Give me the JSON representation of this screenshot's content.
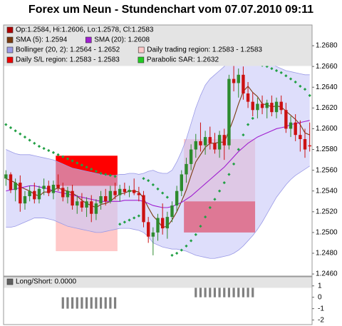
{
  "chart_data": [
    {
      "type": "candlestick",
      "title": "Forex um Neun - Stundenchart vom 07.07.2010 09:11",
      "open": [
        1.2552,
        1.2556,
        1.2541,
        1.2548,
        1.2528,
        1.2535,
        1.254,
        1.2532,
        1.2542,
        1.2545,
        1.2538,
        1.2546,
        1.2543,
        1.2534,
        1.254,
        1.2526,
        1.253,
        1.2524,
        1.253,
        1.2518,
        1.2528,
        1.2535,
        1.253,
        1.254,
        1.2536,
        1.2542,
        1.2539,
        1.2541,
        1.2538,
        1.2536,
        1.251,
        1.2496,
        1.25,
        1.2514,
        1.2504,
        1.2515,
        1.2526,
        1.254,
        1.2556,
        1.2566,
        1.258,
        1.2588,
        1.2584,
        1.2592,
        1.2586,
        1.258,
        1.2594,
        1.2584,
        1.2648,
        1.2644,
        1.2652,
        1.2634,
        1.2626,
        1.2618,
        1.2624,
        1.262,
        1.2625,
        1.2616,
        1.2626,
        1.2618,
        1.26,
        1.2606,
        1.2594,
        1.259,
        1.2584
      ],
      "high": [
        1.256,
        1.2558,
        1.2552,
        1.2555,
        1.254,
        1.2545,
        1.2548,
        1.2545,
        1.2552,
        1.255,
        1.255,
        1.2556,
        1.2548,
        1.2544,
        1.2546,
        1.2536,
        1.2538,
        1.2534,
        1.2536,
        1.2532,
        1.254,
        1.2542,
        1.2545,
        1.2548,
        1.2546,
        1.2548,
        1.2545,
        1.2552,
        1.2544,
        1.254,
        1.2515,
        1.2505,
        1.2518,
        1.2528,
        1.252,
        1.253,
        1.2545,
        1.256,
        1.2572,
        1.2585,
        1.2595,
        1.2606,
        1.2598,
        1.2602,
        1.2596,
        1.2598,
        1.26,
        1.2652,
        1.2662,
        1.2658,
        1.266,
        1.2645,
        1.2635,
        1.263,
        1.2632,
        1.2628,
        1.2632,
        1.263,
        1.2632,
        1.2625,
        1.2612,
        1.2614,
        1.2608,
        1.26,
        1.2606
      ],
      "low": [
        1.2545,
        1.2538,
        1.253,
        1.252,
        1.2522,
        1.253,
        1.2528,
        1.2528,
        1.2536,
        1.2535,
        1.2532,
        1.254,
        1.253,
        1.2528,
        1.2522,
        1.2518,
        1.252,
        1.2515,
        1.251,
        1.2512,
        1.2522,
        1.2526,
        1.2528,
        1.2532,
        1.253,
        1.2536,
        1.2534,
        1.2536,
        1.253,
        1.2505,
        1.249,
        1.2478,
        1.2492,
        1.2498,
        1.2494,
        1.251,
        1.252,
        1.2535,
        1.2548,
        1.256,
        1.2572,
        1.2578,
        1.2575,
        1.258,
        1.2576,
        1.2572,
        1.257,
        1.258,
        1.2636,
        1.263,
        1.2628,
        1.262,
        1.2612,
        1.261,
        1.2614,
        1.261,
        1.2612,
        1.261,
        1.2614,
        1.2596,
        1.2592,
        1.2588,
        1.2578,
        1.2572,
        1.2578
      ],
      "close": [
        1.2556,
        1.2541,
        1.2548,
        1.2528,
        1.2535,
        1.254,
        1.2532,
        1.2542,
        1.2545,
        1.2538,
        1.2546,
        1.2543,
        1.2534,
        1.254,
        1.2526,
        1.253,
        1.2524,
        1.253,
        1.2518,
        1.2528,
        1.2535,
        1.253,
        1.254,
        1.2536,
        1.2542,
        1.2539,
        1.2541,
        1.2538,
        1.2536,
        1.251,
        1.2496,
        1.25,
        1.2514,
        1.2504,
        1.2515,
        1.2526,
        1.254,
        1.2556,
        1.2566,
        1.258,
        1.2588,
        1.2584,
        1.2592,
        1.2586,
        1.258,
        1.2594,
        1.2584,
        1.2648,
        1.2644,
        1.2652,
        1.2634,
        1.2626,
        1.2618,
        1.2624,
        1.262,
        1.2625,
        1.2616,
        1.2626,
        1.2618,
        1.26,
        1.2606,
        1.2594,
        1.259,
        1.258,
        1.2583
      ],
      "up_color": "#2e8b2e",
      "down_color": "#cc1111",
      "bollinger": {
        "fill": "#c8c8f8",
        "line": "#9a9ae6",
        "upper": [
          1.258,
          1.2578,
          1.2576,
          1.2575,
          1.2575,
          1.2575,
          1.2574,
          1.2573,
          1.2572,
          1.2571,
          1.257,
          1.2568,
          1.2566,
          1.2564,
          1.2562,
          1.2561,
          1.256,
          1.2559,
          1.2558,
          1.2557,
          1.2556,
          1.2555,
          1.2555,
          1.2555,
          1.2556,
          1.2556,
          1.2557,
          1.2557,
          1.2556,
          1.2557,
          1.2559,
          1.256,
          1.2558,
          1.2557,
          1.2557,
          1.256,
          1.2568,
          1.2578,
          1.259,
          1.2605,
          1.262,
          1.2632,
          1.2642,
          1.2648,
          1.2652,
          1.2656,
          1.266,
          1.2665,
          1.267,
          1.2672,
          1.2672,
          1.267,
          1.2668,
          1.2666,
          1.2664,
          1.2663,
          1.2662,
          1.266,
          1.2658,
          1.2656,
          1.2655,
          1.2654,
          1.2653,
          1.2652,
          1.2652
        ],
        "lower": [
          1.2505,
          1.2505,
          1.2506,
          1.2508,
          1.251,
          1.2512,
          1.2514,
          1.2514,
          1.2514,
          1.2513,
          1.2512,
          1.251,
          1.2508,
          1.2506,
          1.2505,
          1.2504,
          1.2503,
          1.2502,
          1.2501,
          1.25,
          1.25,
          1.2501,
          1.2502,
          1.2503,
          1.2504,
          1.2504,
          1.2504,
          1.2503,
          1.2502,
          1.25,
          1.2496,
          1.249,
          1.2488,
          1.2486,
          1.2485,
          1.2484,
          1.2484,
          1.2483,
          1.2482,
          1.248,
          1.2478,
          1.2477,
          1.2476,
          1.2475,
          1.2475,
          1.2476,
          1.2477,
          1.2478,
          1.248,
          1.2483,
          1.2487,
          1.2492,
          1.2497,
          1.2503,
          1.251,
          1.2518,
          1.2526,
          1.2534,
          1.254,
          1.2546,
          1.2551,
          1.2555,
          1.2558,
          1.2561,
          1.2564
        ]
      },
      "lines": [
        {
          "color": "#7a3a10",
          "values": [
            1.2552,
            1.255,
            1.2548,
            1.2544,
            1.2542,
            1.254,
            1.2537,
            1.2535,
            1.2539,
            1.2539,
            1.2541,
            1.2543,
            1.2541,
            1.254,
            1.2538,
            1.2535,
            1.2531,
            1.2528,
            1.2526,
            1.2524,
            1.2527,
            1.2528,
            1.253,
            1.2534,
            1.2537,
            1.2538,
            1.254,
            1.254,
            1.2539,
            1.2533,
            1.2524,
            1.2516,
            1.2511,
            1.2505,
            1.2506,
            1.2512,
            1.252,
            1.253,
            1.2541,
            1.2555,
            1.2568,
            1.2575,
            1.2582,
            1.2586,
            1.2586,
            1.2587,
            1.2587,
            1.2598,
            1.261,
            1.2624,
            1.2636,
            1.2641,
            1.2635,
            1.2631,
            1.2624,
            1.2623,
            1.2621,
            1.2622,
            1.2621,
            1.2617,
            1.2613,
            1.2609,
            1.2604,
            1.2596,
            1.2594
          ]
        },
        {
          "color": "#a020d0",
          "values": [
            1.254,
            1.2541,
            1.2542,
            1.2543,
            1.2544,
            1.2545,
            1.2545,
            1.2544,
            1.2543,
            1.2542,
            1.254,
            1.2539,
            1.2538,
            1.2537,
            1.2536,
            1.2535,
            1.2534,
            1.2533,
            1.2532,
            1.2531,
            1.253,
            1.253,
            1.253,
            1.253,
            1.253,
            1.2531,
            1.2531,
            1.2531,
            1.2531,
            1.253,
            1.2528,
            1.2526,
            1.2525,
            1.2524,
            1.2524,
            1.2525,
            1.2527,
            1.2529,
            1.2532,
            1.2535,
            1.2539,
            1.2543,
            1.2547,
            1.2551,
            1.2555,
            1.2559,
            1.2563,
            1.2568,
            1.2573,
            1.2578,
            1.2582,
            1.2586,
            1.2589,
            1.2592,
            1.2594,
            1.2596,
            1.2598,
            1.26,
            1.2601,
            1.2602,
            1.2604,
            1.2605,
            1.2606,
            1.2607,
            1.2608
          ]
        }
      ],
      "sar": {
        "color": "#22a045",
        "values": [
          1.2604,
          1.2601,
          1.2598,
          1.2595,
          1.2592,
          1.2589,
          1.2586,
          1.2583,
          1.2581,
          1.2579,
          1.2577,
          1.2575,
          1.2573,
          1.2571,
          1.2569,
          1.2567,
          1.2565,
          1.2563,
          1.2561,
          1.2559,
          1.2557,
          1.2556,
          1.2555,
          1.2554,
          1.2508,
          1.251,
          1.2512,
          1.2514,
          1.2516,
          1.2552,
          1.255,
          1.2546,
          1.2542,
          1.2538,
          1.2534,
          1.2478,
          1.248,
          1.2483,
          1.2487,
          1.2492,
          1.2498,
          1.2506,
          1.2515,
          1.2524,
          1.2532,
          1.254,
          1.2548,
          1.2556,
          1.2566,
          1.258,
          1.2594,
          1.2604,
          1.261,
          1.2662,
          1.2661,
          1.266,
          1.2658,
          1.2656,
          1.2654,
          1.2651,
          1.2648,
          1.2645,
          1.2641,
          1.2638,
          1.2632
        ]
      },
      "regions": [
        {
          "start": 11,
          "end": 23,
          "low": 1.2482,
          "high": 1.2545,
          "color": "#ffc8c8"
        },
        {
          "start": 11,
          "end": 23,
          "low": 1.2545,
          "high": 1.2574,
          "color": "#ff0000"
        },
        {
          "start": 38,
          "end": 52,
          "low": 1.253,
          "high": 1.259,
          "color": "#ffc8c8"
        },
        {
          "start": 38,
          "end": 52,
          "low": 1.25,
          "high": 1.253,
          "color": "#ff0000"
        }
      ],
      "legend": [
        {
          "label": "Op:1.2584, Hi:1.2606, Lo:1.2578, Cl:1.2583",
          "color": "#b00000"
        },
        {
          "label": "SMA (5): 1.2594",
          "color": "#7a3a10"
        },
        {
          "label": "SMA (20): 1.2608",
          "color": "#a020d0"
        },
        {
          "label": "Bollinger (20, 2): 1.2564 - 1.2652",
          "color": "#9a9ae6"
        },
        {
          "label": "Daily trading region: 1.2583 - 1.2583",
          "color": "#ffc8c8"
        },
        {
          "label": "Daily S/L region: 1.2583 - 1.2583",
          "color": "#ee0000"
        },
        {
          "label": "Parabolic SAR: 1.2632",
          "color": "#22cc22"
        }
      ],
      "ylim": [
        1.2458,
        1.27
      ],
      "yticks": [
        {
          "value": 1.246,
          "label": "1.2460"
        },
        {
          "value": 1.248,
          "label": "1.2480"
        },
        {
          "value": 1.25,
          "label": "1.2500"
        },
        {
          "value": 1.252,
          "label": "1.2520"
        },
        {
          "value": 1.254,
          "label": "1.2540"
        },
        {
          "value": 1.256,
          "label": "1.2560"
        },
        {
          "value": 1.258,
          "label": "1.2580"
        },
        {
          "value": 1.26,
          "label": "1.2600"
        },
        {
          "value": 1.262,
          "label": "1.2620"
        },
        {
          "value": 1.264,
          "label": "1.2640"
        },
        {
          "value": 1.266,
          "label": "1.2660"
        },
        {
          "value": 1.268,
          "label": "1.2680"
        }
      ]
    },
    {
      "type": "bar",
      "legend": [
        {
          "label": "Long/Short: 0.0000",
          "color": "#606060"
        }
      ],
      "color": "#808080",
      "values": [
        0,
        0,
        0,
        0,
        0,
        0,
        0,
        0,
        0,
        0,
        0,
        0,
        -1,
        -1,
        -1,
        -1,
        -1,
        -1,
        -1,
        -1,
        -1,
        -1,
        -1,
        -1,
        0,
        0,
        0,
        0,
        0,
        0,
        0,
        0,
        0,
        0,
        0,
        0,
        0,
        0,
        0,
        0,
        1,
        1,
        1,
        1,
        1,
        1,
        1,
        1,
        1,
        1,
        1,
        1,
        1,
        0,
        0,
        0,
        0,
        0,
        0,
        0,
        0,
        0,
        0,
        0,
        0
      ],
      "ylim": [
        -2.4,
        1.8
      ],
      "yticks": [
        1,
        0,
        -1,
        -2
      ]
    }
  ]
}
